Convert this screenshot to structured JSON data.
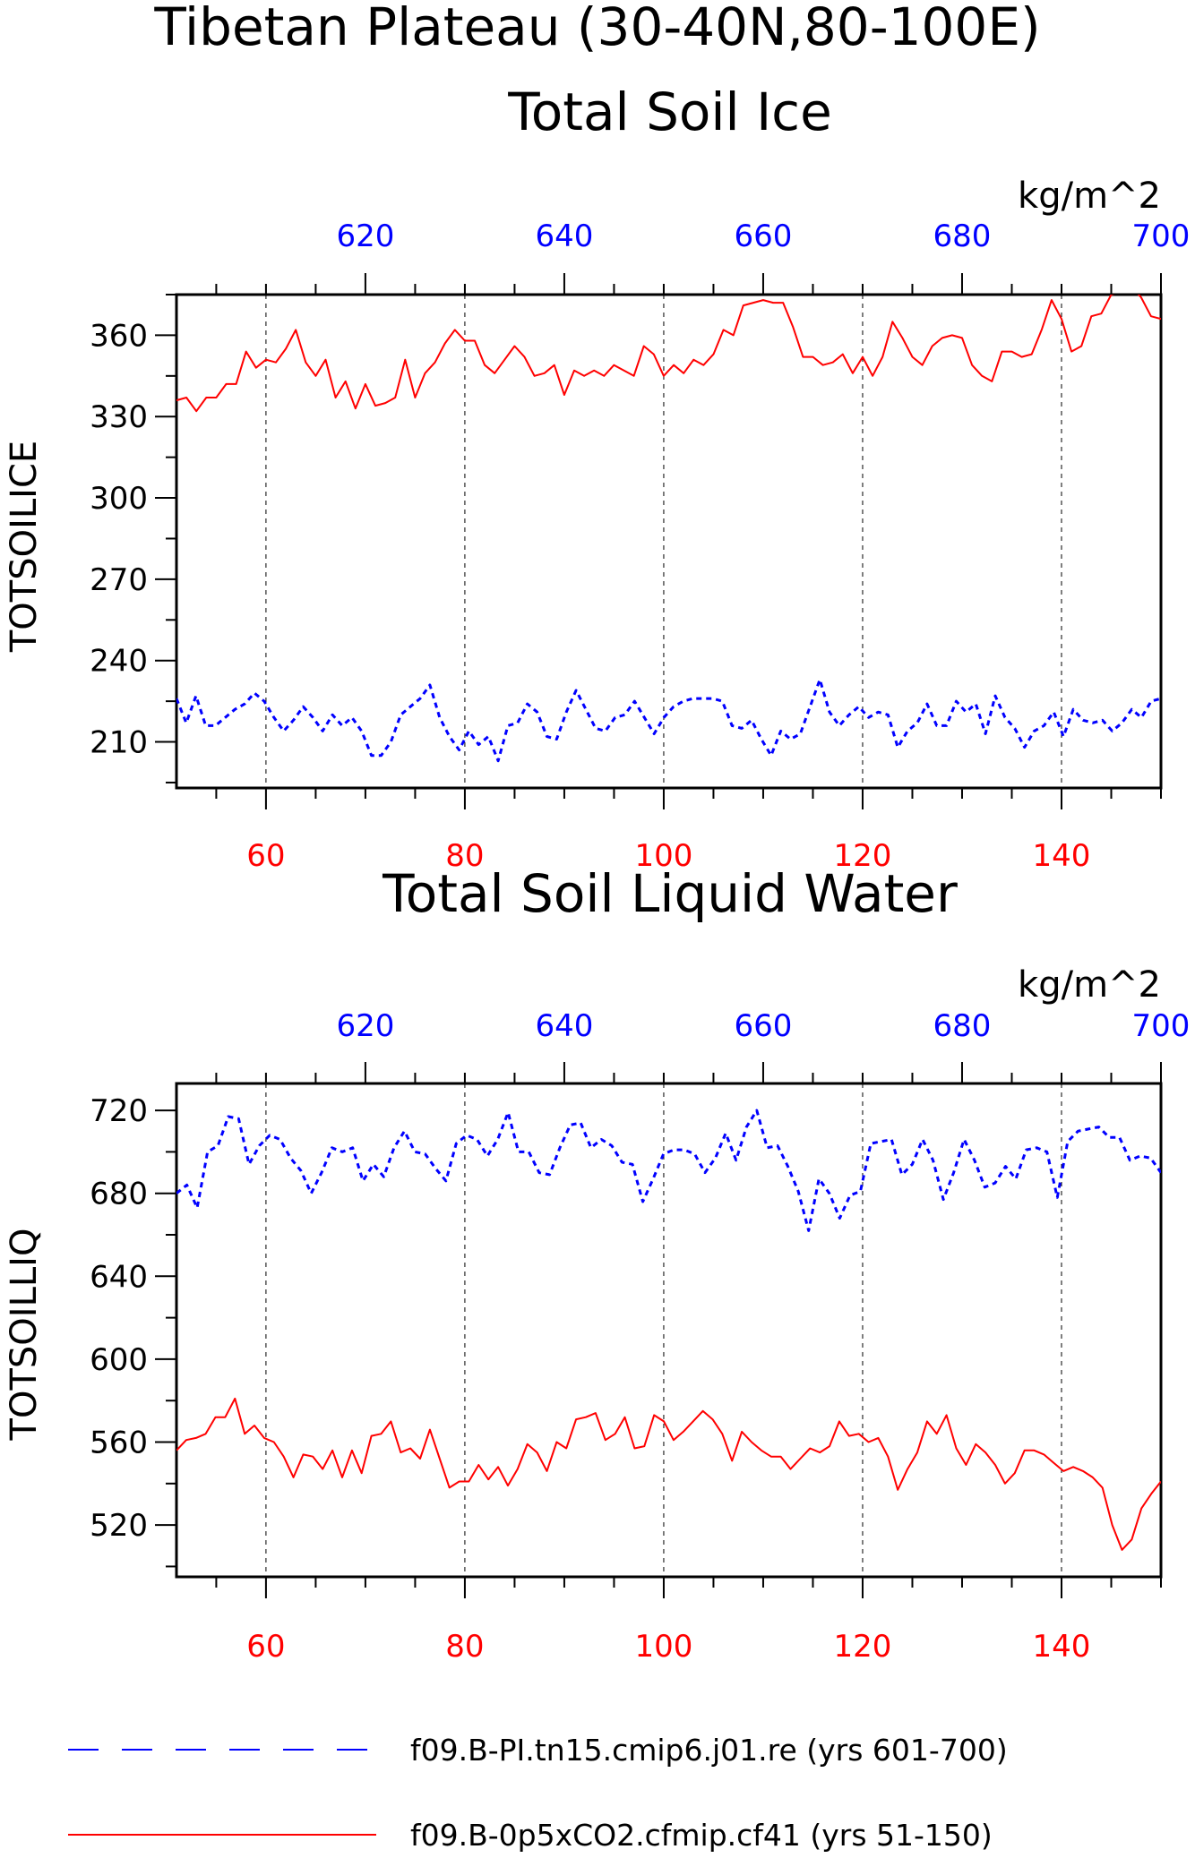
{
  "figure": {
    "title_line1": "Tibetan Plateau (30-40N,80-100E)",
    "legend": [
      {
        "label": "f09.B-PI.tn15.cmip6.j01.re (yrs 601-700)",
        "color": "#0000ff",
        "dash": true
      },
      {
        "label": "f09.B-0p5xCO2.cfmip.cf41 (yrs 51-150)",
        "color": "#ff0000",
        "dash": false
      }
    ],
    "colors": {
      "bottom_axis": "#ff0000",
      "top_axis": "#0000ff",
      "axes": "#000000"
    }
  },
  "chart_data": [
    {
      "type": "line",
      "title": "Total Soil Ice",
      "ylabel": "TOTSOILICE",
      "units": "kg/m^2",
      "ylim": [
        193,
        375
      ],
      "yticks": [
        "210",
        "240",
        "270",
        "300",
        "330",
        "360"
      ],
      "x_bottom": {
        "range": [
          51,
          150
        ],
        "ticks": [
          "60",
          "80",
          "100",
          "120",
          "140"
        ]
      },
      "x_top": {
        "range": [
          601,
          700
        ],
        "ticks": [
          "620",
          "640",
          "660",
          "680",
          "700"
        ]
      },
      "grid": "dashed vertical lines at bottom-axis major ticks",
      "series": [
        {
          "name": "f09.B-0p5xCO2.cfmip.cf41 (yrs 51-150)",
          "color": "#ff0000",
          "dash": false,
          "axis": "bottom",
          "values": [
            336,
            337,
            332,
            337,
            337,
            342,
            342,
            354,
            348,
            351,
            350,
            355,
            362,
            350,
            345,
            351,
            337,
            343,
            333,
            342,
            334,
            335,
            337,
            351,
            337,
            346,
            350,
            357,
            362,
            358,
            358,
            349,
            346,
            351,
            356,
            352,
            345,
            346,
            349,
            338,
            347,
            345,
            347,
            345,
            349,
            347,
            345,
            356,
            353,
            345,
            349,
            346,
            351,
            349,
            353,
            362,
            360,
            371,
            372,
            373,
            372,
            372,
            363,
            352,
            352,
            349,
            350,
            353,
            346,
            352,
            345,
            352,
            365,
            359,
            352,
            349,
            356,
            359,
            360,
            359,
            349,
            345,
            343,
            354,
            354,
            352,
            353,
            362,
            373,
            366,
            354,
            356,
            367,
            368,
            375,
            376,
            378,
            374,
            367,
            366
          ]
        },
        {
          "name": "f09.B-PI.tn15.cmip6.j01.re (yrs 601-700)",
          "color": "#0000ff",
          "dash": true,
          "axis": "top",
          "values": [
            226,
            217,
            227,
            216,
            216,
            219,
            222,
            224,
            228,
            225,
            219,
            214,
            218,
            223,
            219,
            214,
            220,
            216,
            219,
            214,
            205,
            205,
            210,
            220,
            223,
            226,
            231,
            219,
            212,
            207,
            214,
            209,
            212,
            203,
            216,
            217,
            224,
            221,
            212,
            211,
            221,
            229,
            222,
            215,
            214,
            219,
            220,
            225,
            219,
            213,
            219,
            223,
            225,
            226,
            226,
            226,
            225,
            216,
            215,
            218,
            211,
            205,
            214,
            211,
            213,
            223,
            233,
            221,
            216,
            220,
            223,
            219,
            221,
            220,
            208,
            214,
            217,
            224,
            216,
            216,
            225,
            221,
            224,
            213,
            227,
            219,
            215,
            208,
            214,
            216,
            221,
            212,
            222,
            218,
            217,
            218,
            214,
            217,
            222,
            219,
            225,
            226
          ]
        }
      ]
    },
    {
      "type": "line",
      "title": "Total Soil Liquid Water",
      "ylabel": "TOTSOILLIQ",
      "units": "kg/m^2",
      "ylim": [
        495,
        733
      ],
      "yticks": [
        "520",
        "560",
        "600",
        "640",
        "680",
        "720"
      ],
      "x_bottom": {
        "range": [
          51,
          150
        ],
        "ticks": [
          "60",
          "80",
          "100",
          "120",
          "140"
        ]
      },
      "x_top": {
        "range": [
          601,
          700
        ],
        "ticks": [
          "620",
          "640",
          "660",
          "680",
          "700"
        ]
      },
      "grid": "dashed vertical lines at bottom-axis major ticks",
      "series": [
        {
          "name": "f09.B-0p5xCO2.cfmip.cf41 (yrs 51-150)",
          "color": "#ff0000",
          "dash": false,
          "axis": "bottom",
          "values": [
            556,
            561,
            562,
            564,
            572,
            572,
            581,
            564,
            568,
            562,
            560,
            553,
            543,
            554,
            553,
            547,
            556,
            543,
            556,
            545,
            563,
            564,
            570,
            555,
            557,
            552,
            566,
            552,
            538,
            541,
            541,
            549,
            542,
            548,
            539,
            547,
            559,
            555,
            546,
            560,
            557,
            571,
            572,
            574,
            561,
            564,
            572,
            557,
            558,
            573,
            570,
            561,
            565,
            570,
            575,
            571,
            564,
            551,
            565,
            560,
            556,
            553,
            553,
            547,
            552,
            557,
            555,
            558,
            570,
            563,
            564,
            560,
            562,
            553,
            537,
            547,
            555,
            570,
            564,
            573,
            557,
            549,
            559,
            555,
            549,
            540,
            545,
            556,
            556,
            554,
            550,
            546,
            548,
            546,
            543,
            538,
            520,
            508,
            513,
            528,
            535,
            541
          ]
        },
        {
          "name": "f09.B-PI.tn15.cmip6.j01.re (yrs 601-700)",
          "color": "#0000ff",
          "dash": true,
          "axis": "top",
          "values": [
            680,
            684,
            673,
            700,
            703,
            717,
            716,
            694,
            703,
            708,
            706,
            697,
            691,
            680,
            690,
            702,
            700,
            702,
            686,
            694,
            688,
            702,
            710,
            700,
            699,
            692,
            686,
            704,
            708,
            706,
            698,
            706,
            719,
            700,
            700,
            690,
            689,
            702,
            713,
            714,
            702,
            706,
            703,
            695,
            694,
            676,
            687,
            699,
            701,
            701,
            699,
            690,
            697,
            709,
            696,
            712,
            720,
            702,
            703,
            693,
            681,
            662,
            687,
            680,
            668,
            679,
            681,
            704,
            705,
            706,
            689,
            694,
            706,
            696,
            677,
            690,
            706,
            696,
            683,
            685,
            693,
            687,
            701,
            702,
            700,
            678,
            705,
            710,
            711,
            712,
            707,
            707,
            696,
            698,
            697,
            690
          ]
        }
      ]
    }
  ]
}
